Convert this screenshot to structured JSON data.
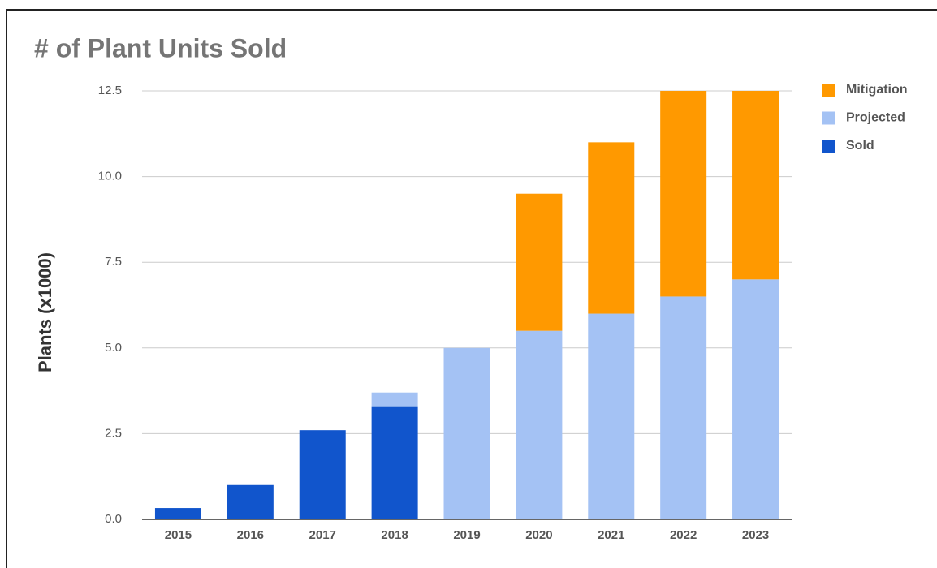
{
  "chart_data": {
    "type": "stacked_bar",
    "title": "# of Plant Units Sold",
    "y_label": "Plants (x1000)",
    "categories": [
      "2015",
      "2016",
      "2017",
      "2018",
      "2019",
      "2020",
      "2021",
      "2022",
      "2023"
    ],
    "series": [
      {
        "name": "Sold",
        "color": "#1155cc",
        "values": [
          0.33,
          1.0,
          2.6,
          3.3,
          null,
          null,
          null,
          null,
          null
        ]
      },
      {
        "name": "Projected",
        "color": "#a4c2f4",
        "values": [
          null,
          null,
          null,
          0.4,
          5.0,
          5.5,
          6.0,
          6.5,
          7.0
        ]
      },
      {
        "name": "Mitigation",
        "color": "#ff9900",
        "values": [
          null,
          null,
          null,
          null,
          null,
          4.0,
          5.0,
          6.0,
          5.5
        ]
      }
    ],
    "ylim": [
      0,
      12.5
    ],
    "yticks": [
      {
        "value": 0,
        "label": "0.0"
      },
      2.5,
      {
        "value": 5,
        "label": "5.0"
      },
      7.5,
      {
        "value": 10,
        "label": "10.0"
      },
      12.5
    ],
    "grid": true,
    "legend": "right"
  }
}
